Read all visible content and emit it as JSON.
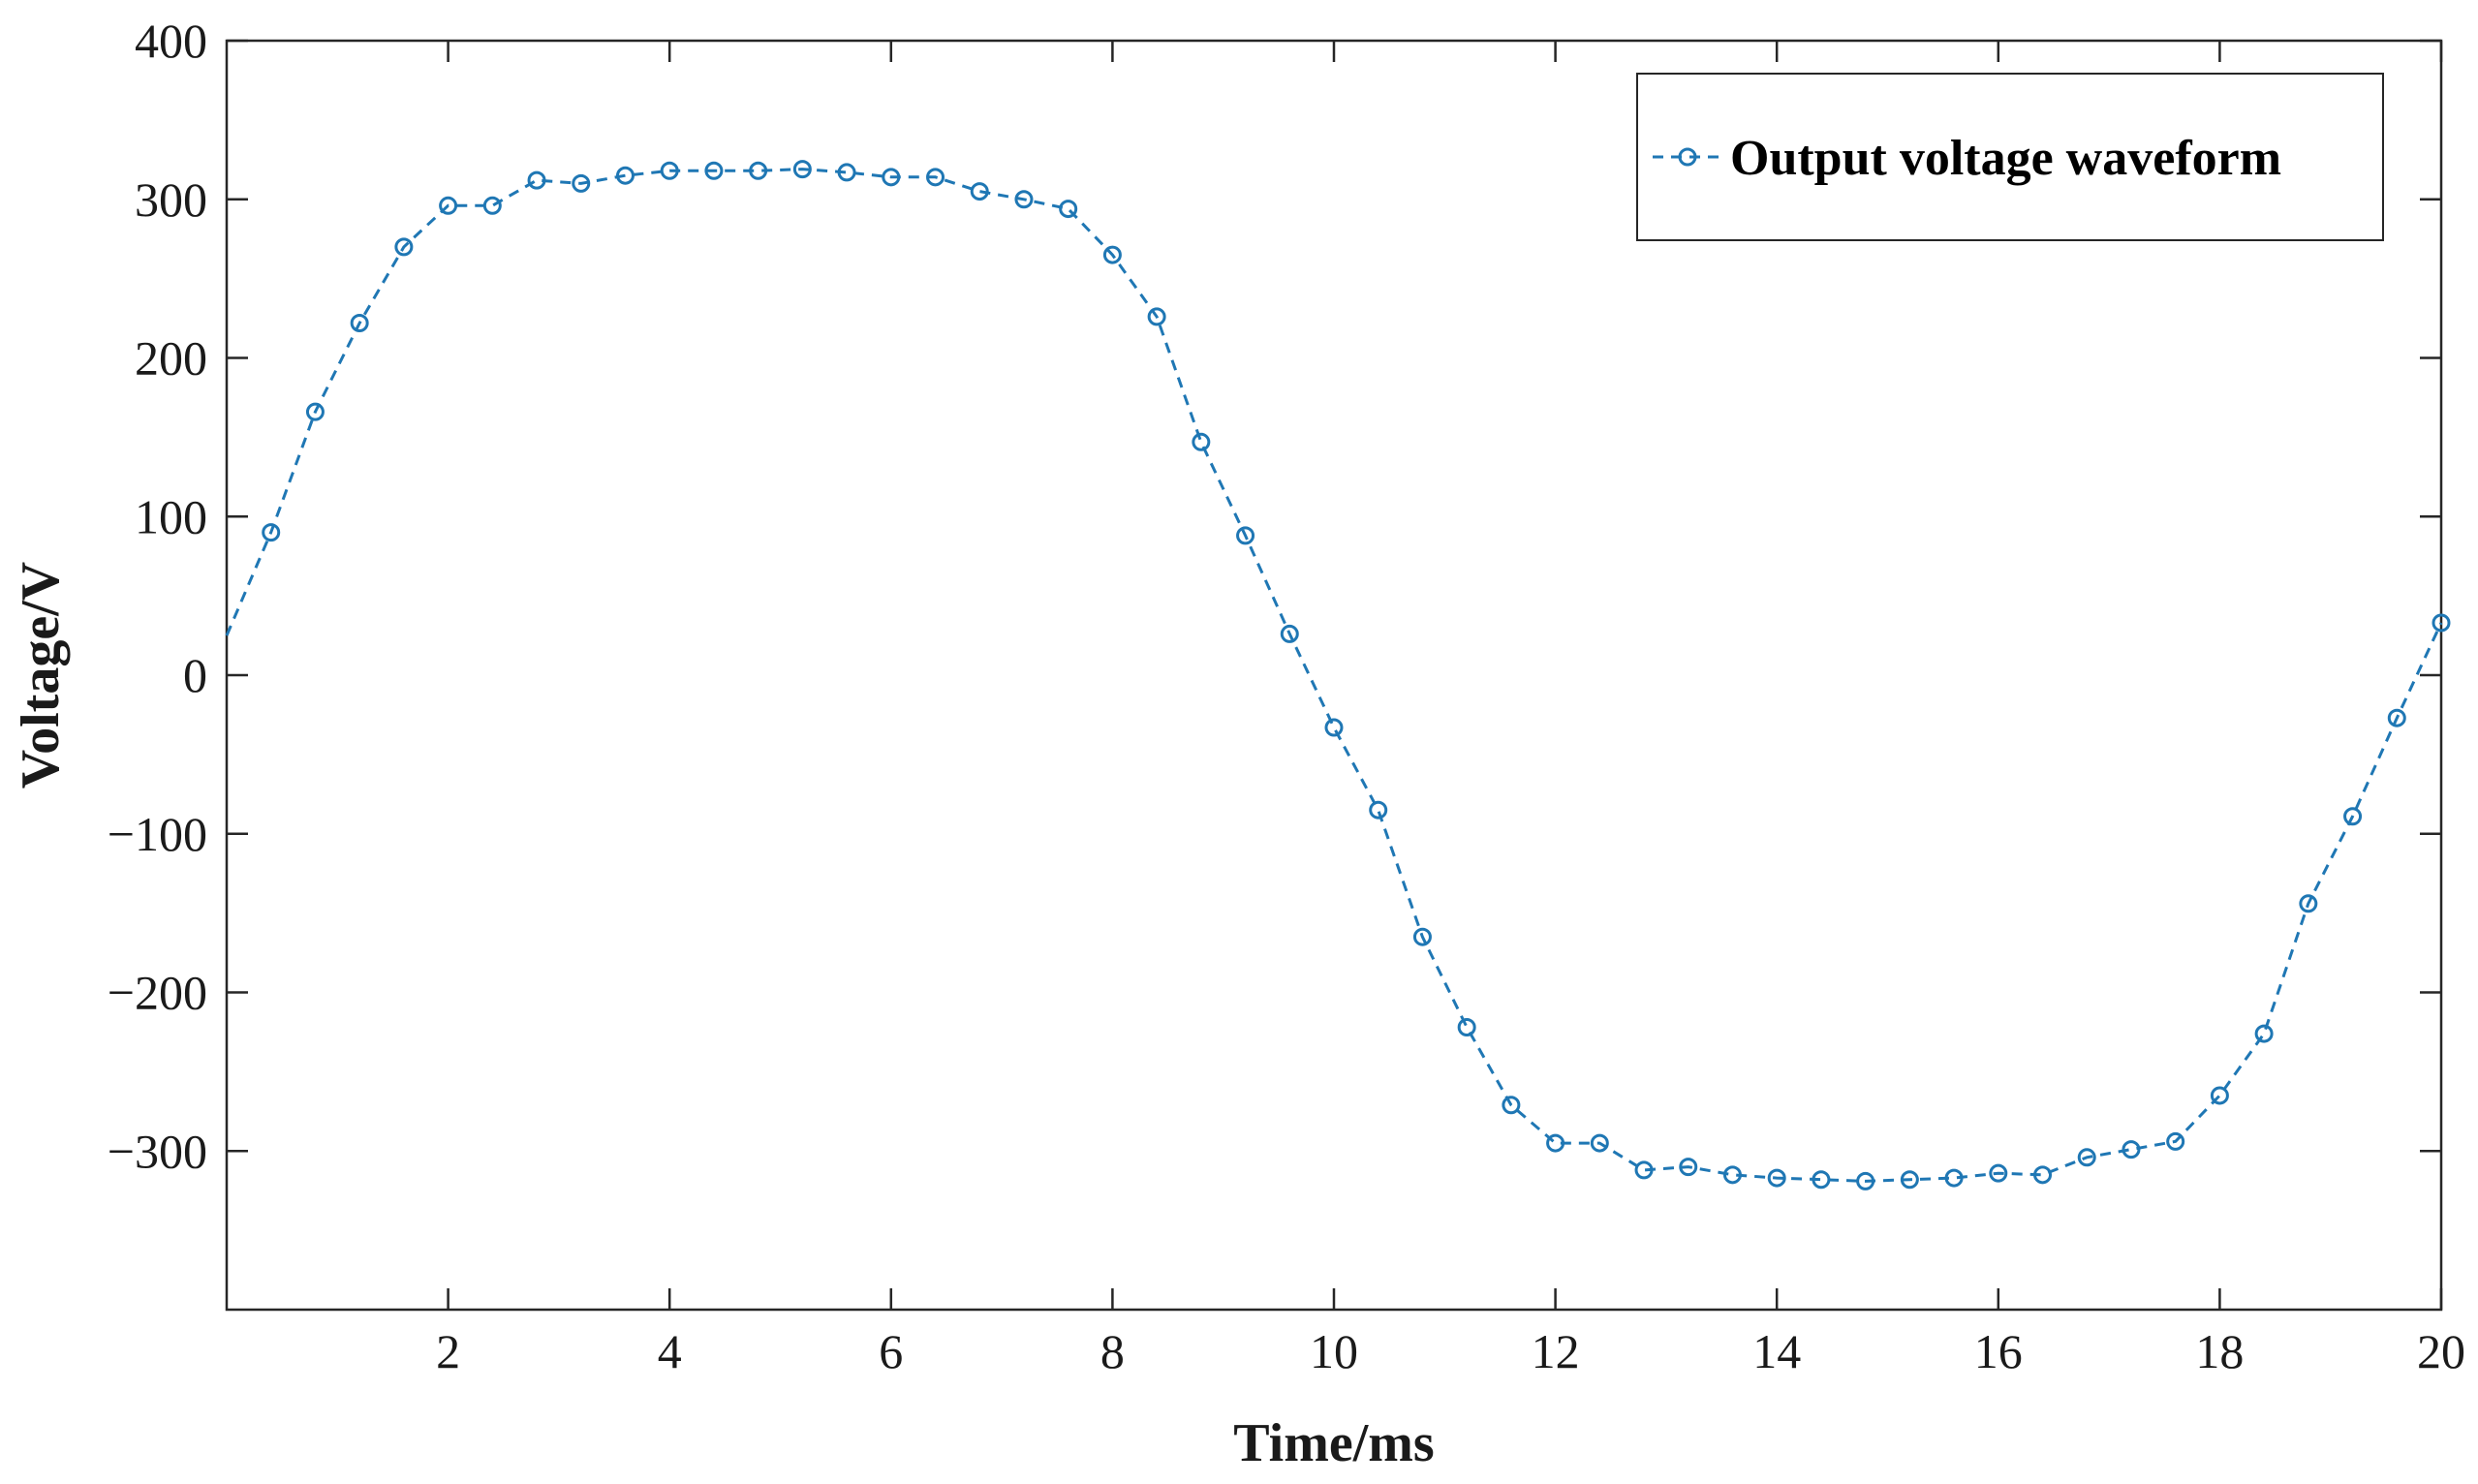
{
  "chart_data": {
    "type": "line",
    "title": "",
    "xlabel": "Time/ms",
    "ylabel": "Voltage/V",
    "xlim": [
      0,
      20
    ],
    "ylim": [
      -400,
      400
    ],
    "xticks": [
      2,
      4,
      6,
      8,
      10,
      12,
      14,
      16,
      18,
      20
    ],
    "yticks": [
      -300,
      -200,
      -100,
      0,
      100,
      200,
      300,
      400
    ],
    "ytick_labels": [
      "−300",
      "−200",
      "−100",
      "0",
      "100",
      "200",
      "300",
      "400"
    ],
    "grid": false,
    "legend_position": "top-right",
    "colors": {
      "series": "#1f77b4",
      "axis": "#262626"
    },
    "series": [
      {
        "name": "Output voltage waveform",
        "line_style": "dashed",
        "marker": "circle",
        "x": [
          0,
          0.4,
          0.8,
          1.2,
          1.6,
          2.0,
          2.4,
          2.8,
          3.2,
          3.6,
          4.0,
          4.4,
          4.8,
          5.2,
          5.6,
          6.0,
          6.4,
          6.8,
          7.2,
          7.6,
          8.0,
          8.4,
          8.8,
          9.2,
          9.6,
          10.0,
          10.4,
          10.8,
          11.2,
          11.6,
          12.0,
          12.4,
          12.8,
          13.2,
          13.6,
          14.0,
          14.4,
          14.8,
          15.2,
          15.6,
          16.0,
          16.4,
          16.8,
          17.2,
          17.6,
          18.0,
          18.4,
          18.8,
          19.2,
          19.6,
          20.0
        ],
        "y": [
          25,
          90,
          166,
          222,
          270,
          296,
          296,
          312,
          310,
          315,
          318,
          318,
          318,
          319,
          317,
          314,
          314,
          305,
          300,
          294,
          265,
          226,
          147,
          88,
          26,
          -33,
          -85,
          -165,
          -222,
          -271,
          -295,
          -295,
          -312,
          -310,
          -315,
          -317,
          -318,
          -319,
          -318,
          -317,
          -314,
          -315,
          -304,
          -299,
          -294,
          -265,
          -226,
          -144,
          -89,
          -27,
          33
        ]
      }
    ]
  }
}
